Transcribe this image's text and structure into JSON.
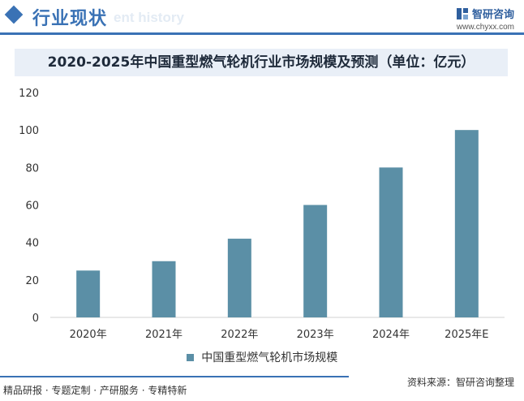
{
  "header": {
    "section_title": "行业现状",
    "section_subtitle": "ent history",
    "brand_name": "智研咨询",
    "brand_url": "www.chyxx.com"
  },
  "footer": {
    "services": "精品研报 · 专题定制 · 产研服务 · 专精特新",
    "source": "资料来源：智研咨询整理"
  },
  "colors": {
    "accent": "#3a72b5",
    "bar": "#5b8fa6",
    "title_band": "#e9eff7"
  },
  "chart_data": {
    "type": "bar",
    "title": "2020-2025年中国重型燃气轮机行业市场规模及预测（单位：亿元）",
    "categories": [
      "2020年",
      "2021年",
      "2022年",
      "2023年",
      "2024年",
      "2025年E"
    ],
    "series": [
      {
        "name": "中国重型燃气轮机市场规模",
        "values": [
          25,
          30,
          42,
          60,
          80,
          100
        ]
      }
    ],
    "ylim": [
      0,
      120
    ],
    "yticks": [
      0,
      20,
      40,
      60,
      80,
      100,
      120
    ],
    "grid": false,
    "legend_position": "bottom"
  }
}
